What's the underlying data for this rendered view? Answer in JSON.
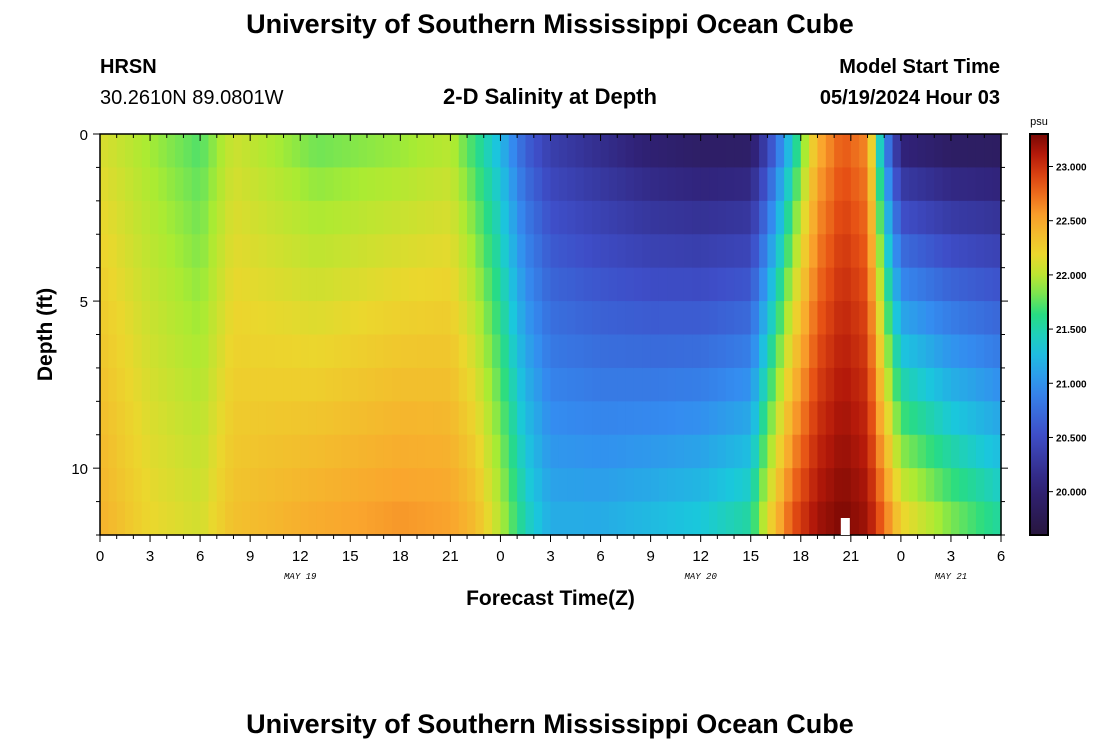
{
  "header": {
    "title": "University of Southern Mississippi Ocean Cube",
    "station_id": "HRSN",
    "coordinates": "30.2610N  89.0801W",
    "chart_title": "2-D Salinity at Depth",
    "model_start_label": "Model Start Time",
    "model_start_value": "05/19/2024 Hour 03",
    "footer_title": "University of Southern Mississippi Ocean Cube"
  },
  "chart_data": {
    "type": "heatmap",
    "title": "2-D Salinity at Depth",
    "xlabel": "Forecast Time(Z)",
    "ylabel": "Depth (ft)",
    "x_range_hours": [
      0,
      54
    ],
    "x_tick_hours": [
      0,
      3,
      6,
      9,
      12,
      15,
      18,
      21,
      24,
      27,
      30,
      33,
      36,
      39,
      42,
      45,
      48,
      51,
      54
    ],
    "x_tick_labels": [
      "0",
      "3",
      "6",
      "9",
      "12",
      "15",
      "18",
      "21",
      "0",
      "3",
      "6",
      "9",
      "12",
      "15",
      "18",
      "21",
      "0",
      "3",
      "6"
    ],
    "date_labels": [
      {
        "hour": 12,
        "label": "MAY 19"
      },
      {
        "hour": 36,
        "label": "MAY 20"
      },
      {
        "hour": 51,
        "label": "MAY 21"
      }
    ],
    "y_range_ft": [
      0,
      12
    ],
    "y_tick_values": [
      0,
      5,
      10
    ],
    "y_tick_labels": [
      "0",
      "5",
      "10"
    ],
    "depth_levels_ft": [
      0,
      1,
      2,
      3,
      4,
      5,
      6,
      7,
      8,
      9,
      10,
      11
    ],
    "colorbar": {
      "unit": "psu",
      "range": [
        19.6,
        23.3
      ],
      "tick_values": [
        20.0,
        20.5,
        21.0,
        21.5,
        22.0,
        22.5,
        23.0
      ],
      "tick_labels": [
        "20.000",
        "20.500",
        "21.000",
        "21.500",
        "22.000",
        "22.500",
        "23.000"
      ]
    },
    "salinity_anchors": [
      {
        "hour": 0,
        "surface": 22.1,
        "bottom": 22.45
      },
      {
        "hour": 3,
        "surface": 21.9,
        "bottom": 22.2
      },
      {
        "hour": 6,
        "surface": 21.7,
        "bottom": 22.1
      },
      {
        "hour": 8,
        "surface": 22.05,
        "bottom": 22.35
      },
      {
        "hour": 13,
        "surface": 21.75,
        "bottom": 22.5
      },
      {
        "hour": 18,
        "surface": 21.85,
        "bottom": 22.6
      },
      {
        "hour": 21,
        "surface": 21.95,
        "bottom": 22.55
      },
      {
        "hour": 22.5,
        "surface": 21.6,
        "bottom": 22.4
      },
      {
        "hour": 24,
        "surface": 21.2,
        "bottom": 22.0
      },
      {
        "hour": 25.5,
        "surface": 20.6,
        "bottom": 21.5
      },
      {
        "hour": 27,
        "surface": 20.3,
        "bottom": 21.2
      },
      {
        "hour": 30,
        "surface": 20.1,
        "bottom": 21.2
      },
      {
        "hour": 33,
        "surface": 19.9,
        "bottom": 21.3
      },
      {
        "hour": 36,
        "surface": 19.8,
        "bottom": 21.4
      },
      {
        "hour": 39,
        "surface": 19.8,
        "bottom": 21.6
      },
      {
        "hour": 40,
        "surface": 20.3,
        "bottom": 22.2
      },
      {
        "hour": 41.5,
        "surface": 21.3,
        "bottom": 22.9
      },
      {
        "hour": 43,
        "surface": 22.4,
        "bottom": 23.2
      },
      {
        "hour": 44.5,
        "surface": 22.8,
        "bottom": 23.3
      },
      {
        "hour": 46,
        "surface": 22.6,
        "bottom": 23.2
      },
      {
        "hour": 47,
        "surface": 20.9,
        "bottom": 22.8
      },
      {
        "hour": 48,
        "surface": 19.9,
        "bottom": 22.3
      },
      {
        "hour": 51,
        "surface": 19.75,
        "bottom": 21.9
      },
      {
        "hour": 54,
        "surface": 19.75,
        "bottom": 21.6
      }
    ]
  }
}
